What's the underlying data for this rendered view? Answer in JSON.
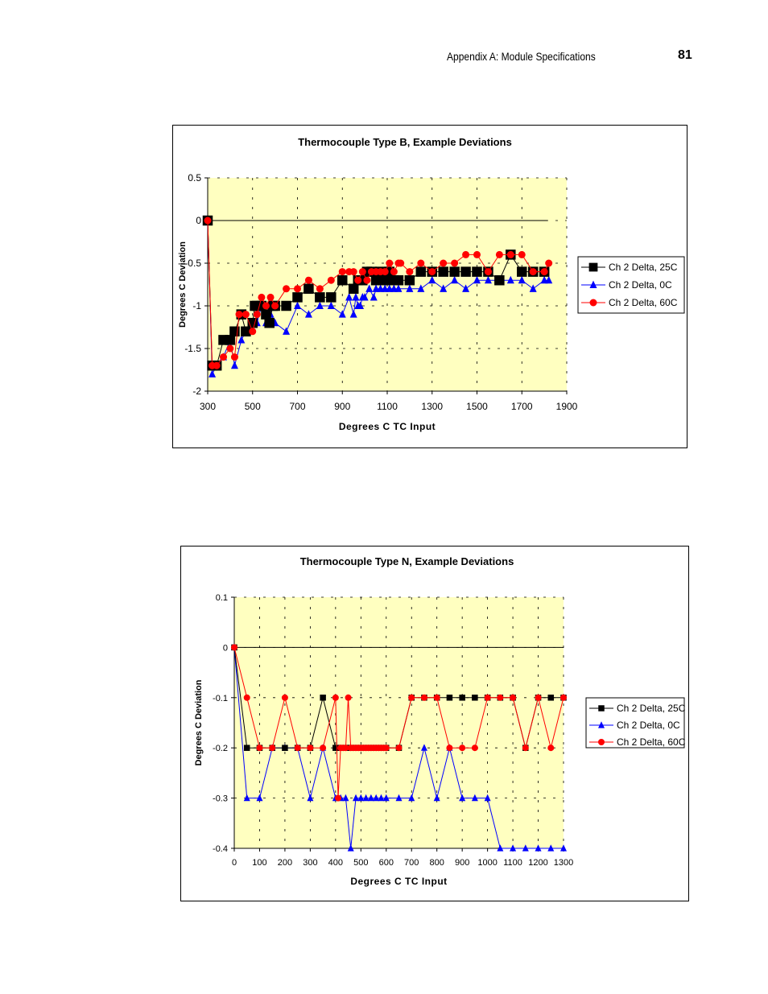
{
  "header": {
    "section": "Appendix A: Module Specifications",
    "page_number": "81"
  },
  "colors": {
    "plot_bg": "#ffffc0",
    "series_25c": "#000000",
    "series_0c": "#0000ff",
    "series_60c": "#ff0000"
  },
  "chart_data": [
    {
      "type": "line",
      "title": "Thermocouple Type B, Example Deviations",
      "xlabel": "Degrees C TC Input",
      "ylabel": "Degrees C Deviation",
      "xlim": [
        300,
        1900
      ],
      "ylim": [
        -2,
        0.5
      ],
      "xticks": [
        300,
        500,
        700,
        900,
        1100,
        1300,
        1500,
        1700,
        1900
      ],
      "yticks": [
        0.5,
        0,
        -0.5,
        -1,
        -1.5,
        -2
      ],
      "ytick_labels": [
        "0.5",
        "0",
        "-0.5",
        "-1",
        "-1.5",
        "-2"
      ],
      "grid": true,
      "legend_position": "right",
      "series": [
        {
          "name": "Ch 2 Delta, 25C",
          "marker": "square",
          "color": "#000000",
          "x": [
            300,
            320,
            340,
            370,
            400,
            420,
            450,
            470,
            500,
            510,
            520,
            540,
            560,
            575,
            590,
            600,
            650,
            700,
            750,
            800,
            850,
            900,
            950,
            970,
            990,
            1010,
            1030,
            1050,
            1070,
            1090,
            1110,
            1130,
            1150,
            1200,
            1250,
            1300,
            1350,
            1400,
            1450,
            1500,
            1550,
            1600,
            1650,
            1700,
            1750,
            1800
          ],
          "y": [
            0,
            -1.7,
            -1.7,
            -1.4,
            -1.4,
            -1.3,
            -1.1,
            -1.3,
            -1.2,
            -1.0,
            -1.0,
            -1.0,
            -1.1,
            -1.2,
            -1.0,
            -1.0,
            -1.0,
            -0.9,
            -0.8,
            -0.9,
            -0.9,
            -0.7,
            -0.8,
            -0.7,
            -0.7,
            -0.6,
            -0.6,
            -0.7,
            -0.6,
            -0.7,
            -0.6,
            -0.7,
            -0.7,
            -0.7,
            -0.6,
            -0.6,
            -0.6,
            -0.6,
            -0.6,
            -0.6,
            -0.6,
            -0.7,
            -0.4,
            -0.6,
            -0.6,
            -0.6
          ]
        },
        {
          "name": "Ch 2 Delta, 0C",
          "marker": "triangle",
          "color": "#0000ff",
          "x": [
            300,
            320,
            340,
            370,
            400,
            420,
            450,
            470,
            500,
            520,
            540,
            560,
            580,
            600,
            650,
            700,
            750,
            800,
            850,
            900,
            930,
            950,
            960,
            970,
            980,
            990,
            1000,
            1020,
            1040,
            1050,
            1070,
            1090,
            1110,
            1130,
            1150,
            1200,
            1250,
            1300,
            1350,
            1400,
            1450,
            1500,
            1550,
            1600,
            1650,
            1700,
            1750,
            1800,
            1820
          ],
          "y": [
            0,
            -1.8,
            -1.7,
            -1.6,
            -1.4,
            -1.7,
            -1.4,
            -1.3,
            -1.2,
            -1.2,
            -1.0,
            -1.2,
            -1.1,
            -1.2,
            -1.3,
            -1.0,
            -1.1,
            -1.0,
            -1.0,
            -1.1,
            -0.9,
            -1.1,
            -0.9,
            -1.0,
            -1.0,
            -0.9,
            -0.9,
            -0.8,
            -0.9,
            -0.8,
            -0.8,
            -0.8,
            -0.8,
            -0.8,
            -0.8,
            -0.8,
            -0.8,
            -0.7,
            -0.8,
            -0.7,
            -0.8,
            -0.7,
            -0.7,
            -0.7,
            -0.7,
            -0.7,
            -0.8,
            -0.7,
            -0.7
          ]
        },
        {
          "name": "Ch 2 Delta, 60C",
          "marker": "circle",
          "color": "#ff0000",
          "x": [
            300,
            320,
            340,
            370,
            400,
            420,
            440,
            470,
            500,
            520,
            540,
            560,
            580,
            600,
            650,
            700,
            750,
            800,
            850,
            900,
            930,
            950,
            970,
            990,
            1010,
            1030,
            1050,
            1070,
            1090,
            1110,
            1130,
            1150,
            1160,
            1200,
            1250,
            1300,
            1350,
            1400,
            1450,
            1500,
            1550,
            1600,
            1650,
            1700,
            1750,
            1800,
            1820
          ],
          "y": [
            0,
            -1.7,
            -1.7,
            -1.6,
            -1.5,
            -1.6,
            -1.1,
            -1.1,
            -1.3,
            -1.1,
            -0.9,
            -1.0,
            -0.9,
            -1.0,
            -0.8,
            -0.8,
            -0.7,
            -0.8,
            -0.7,
            -0.6,
            -0.6,
            -0.6,
            -0.7,
            -0.6,
            -0.7,
            -0.6,
            -0.6,
            -0.6,
            -0.6,
            -0.5,
            -0.6,
            -0.5,
            -0.5,
            -0.6,
            -0.5,
            -0.6,
            -0.5,
            -0.5,
            -0.4,
            -0.4,
            -0.6,
            -0.4,
            -0.4,
            -0.4,
            -0.6,
            -0.6,
            -0.5
          ]
        }
      ]
    },
    {
      "type": "line",
      "title": "Thermocouple Type N, Example Deviations",
      "xlabel": "Degrees C TC Input",
      "ylabel": "Degrees C Deviation",
      "xlim": [
        0,
        1300
      ],
      "ylim": [
        -0.4,
        0.1
      ],
      "xticks": [
        0,
        100,
        200,
        300,
        400,
        500,
        600,
        700,
        800,
        900,
        1000,
        1100,
        1200,
        1300
      ],
      "yticks": [
        0.1,
        0,
        -0.1,
        -0.2,
        -0.3,
        -0.4
      ],
      "ytick_labels": [
        "0.1",
        "0",
        "-0.1",
        "-0.2",
        "-0.3",
        "-0.4"
      ],
      "grid": true,
      "legend_position": "right",
      "series": [
        {
          "name": "Ch 2 Delta, 25C",
          "marker": "square",
          "color": "#000000",
          "x": [
            0,
            50,
            100,
            150,
            200,
            250,
            300,
            350,
            400,
            410,
            420,
            430,
            440,
            450,
            460,
            470,
            480,
            490,
            500,
            510,
            520,
            530,
            540,
            550,
            560,
            570,
            580,
            590,
            600,
            650,
            700,
            750,
            800,
            850,
            900,
            950,
            1000,
            1050,
            1100,
            1150,
            1200,
            1250,
            1300
          ],
          "y": [
            0,
            -0.2,
            -0.2,
            -0.2,
            -0.2,
            -0.2,
            -0.2,
            -0.1,
            -0.2,
            -0.2,
            -0.2,
            -0.2,
            -0.2,
            -0.2,
            -0.2,
            -0.2,
            -0.2,
            -0.2,
            -0.2,
            -0.2,
            -0.2,
            -0.2,
            -0.2,
            -0.2,
            -0.2,
            -0.2,
            -0.2,
            -0.2,
            -0.2,
            -0.2,
            -0.1,
            -0.1,
            -0.1,
            -0.1,
            -0.1,
            -0.1,
            -0.1,
            -0.1,
            -0.1,
            -0.2,
            -0.1,
            -0.1,
            -0.1
          ]
        },
        {
          "name": "Ch 2 Delta, 0C",
          "marker": "triangle",
          "color": "#0000ff",
          "x": [
            0,
            50,
            100,
            150,
            200,
            250,
            300,
            350,
            400,
            420,
            440,
            460,
            480,
            500,
            520,
            540,
            560,
            580,
            600,
            650,
            700,
            750,
            800,
            850,
            900,
            950,
            1000,
            1050,
            1100,
            1150,
            1200,
            1250,
            1300
          ],
          "y": [
            0,
            -0.3,
            -0.3,
            -0.2,
            -0.2,
            -0.2,
            -0.3,
            -0.2,
            -0.3,
            -0.3,
            -0.3,
            -0.4,
            -0.3,
            -0.3,
            -0.3,
            -0.3,
            -0.3,
            -0.3,
            -0.3,
            -0.3,
            -0.3,
            -0.2,
            -0.3,
            -0.2,
            -0.3,
            -0.3,
            -0.3,
            -0.4,
            -0.4,
            -0.4,
            -0.4,
            -0.4,
            -0.4
          ]
        },
        {
          "name": "Ch 2 Delta, 60C",
          "marker": "circle",
          "color": "#ff0000",
          "x": [
            0,
            50,
            100,
            150,
            200,
            250,
            300,
            350,
            400,
            410,
            420,
            430,
            440,
            450,
            460,
            470,
            480,
            490,
            500,
            510,
            520,
            530,
            540,
            550,
            560,
            570,
            580,
            590,
            600,
            650,
            700,
            750,
            800,
            850,
            900,
            950,
            1000,
            1050,
            1100,
            1150,
            1200,
            1250,
            1300
          ],
          "y": [
            0,
            -0.1,
            -0.2,
            -0.2,
            -0.1,
            -0.2,
            -0.2,
            -0.2,
            -0.1,
            -0.3,
            -0.2,
            -0.2,
            -0.2,
            -0.1,
            -0.2,
            -0.2,
            -0.2,
            -0.2,
            -0.2,
            -0.2,
            -0.2,
            -0.2,
            -0.2,
            -0.2,
            -0.2,
            -0.2,
            -0.2,
            -0.2,
            -0.2,
            -0.2,
            -0.1,
            -0.1,
            -0.1,
            -0.2,
            -0.2,
            -0.2,
            -0.1,
            -0.1,
            -0.1,
            -0.2,
            -0.1,
            -0.2,
            -0.1
          ]
        }
      ]
    }
  ]
}
